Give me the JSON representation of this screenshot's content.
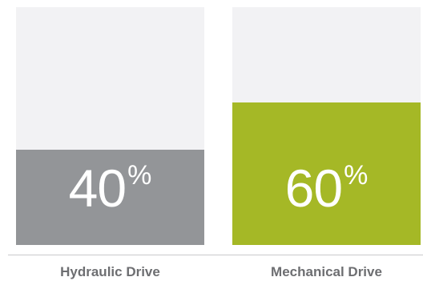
{
  "chart_data": {
    "type": "bar",
    "categories": [
      "Hydraulic Drive",
      "Mechanical Drive"
    ],
    "values": [
      40,
      60
    ],
    "value_suffix": "%",
    "ylim": [
      0,
      100
    ],
    "colors": [
      "#939598",
      "#a5b826"
    ],
    "track_color": "#f2f2f4",
    "title": "",
    "xlabel": "",
    "ylabel": "",
    "grid": false,
    "legend": false
  },
  "bars": [
    {
      "label": "Hydraulic Drive",
      "value_text": "40",
      "suffix": "%"
    },
    {
      "label": "Mechanical Drive",
      "value_text": "60",
      "suffix": "%"
    }
  ]
}
